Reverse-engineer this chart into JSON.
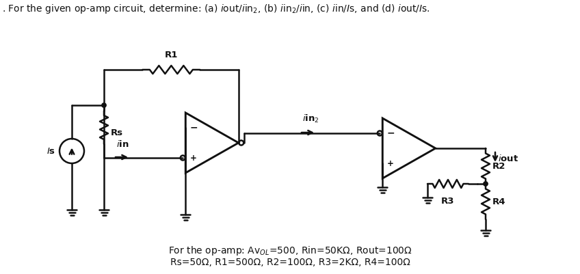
{
  "bg_color": "#ffffff",
  "color": "#111111",
  "lw": 1.8,
  "title": ". For the given op-amp circuit, determine: (a) $\\it{i}$out/$\\it{i}$in$_2$, (b) $\\it{i}$in$_2$/$\\it{i}$in, (c) $\\it{i}$in/$\\it{I}$s, and (d) $\\it{i}$out/$\\it{I}$s.",
  "footer1": "For the op-amp: Av$_{OL}$=500, Rin=50KΩ, Rout=100Ω",
  "footer2": "Rs=50Ω, R1=500Ω, R2=100Ω, R3=2KΩ, R4=100Ω",
  "title_fs": 10.0,
  "label_fs": 9.5,
  "footer_fs": 10.0
}
